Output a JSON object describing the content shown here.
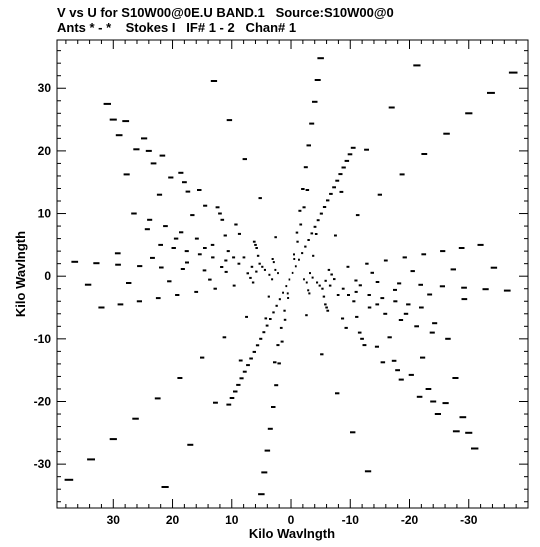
{
  "chart_data": {
    "type": "scatter",
    "title": "V vs U for S10W00@0E.U BAND.1   Source:S10W00@0",
    "subtitle": "Ants * - *    Stokes I   IF# 1 - 2   Chan# 1",
    "xlabel": "Kilo Wavlngth",
    "ylabel": "Kilo Wavlngth",
    "x_reversed": true,
    "xlim": [
      39.5,
      -40.0
    ],
    "ylim": [
      -37.0,
      37.7
    ],
    "x_ticks": [
      30,
      20,
      10,
      0,
      -10,
      -20,
      -30
    ],
    "x_tick_labels": [
      "30",
      "20",
      "10",
      "0",
      "-10",
      "-20",
      "-30"
    ],
    "y_ticks": [
      -30,
      -20,
      -10,
      0,
      10,
      20,
      30
    ],
    "y_tick_labels": [
      "-30",
      "-20",
      "-10",
      "0",
      "10",
      "20",
      "30"
    ],
    "grid": false,
    "marker_color": "#000000",
    "pattern": {
      "description": "snapshot uv-coverage tracks; points along radial spokes, symmetric through origin",
      "arm_end_points": [
        [
          -37.5,
          32.5
        ],
        [
          -5.0,
          34.8
        ],
        [
          31.0,
          27.5
        ],
        [
          29.0,
          22.5
        ],
        [
          26.5,
          10.0
        ],
        [
          22.0,
          5.0
        ],
        [
          36.5,
          2.3
        ],
        [
          32.0,
          -5.0
        ]
      ],
      "steps_per_arm": 10,
      "central_line": {
        "from": [
          -10.5,
          20.5
        ],
        "to": [
          10.5,
          -20.5
        ],
        "points": 40
      }
    }
  }
}
